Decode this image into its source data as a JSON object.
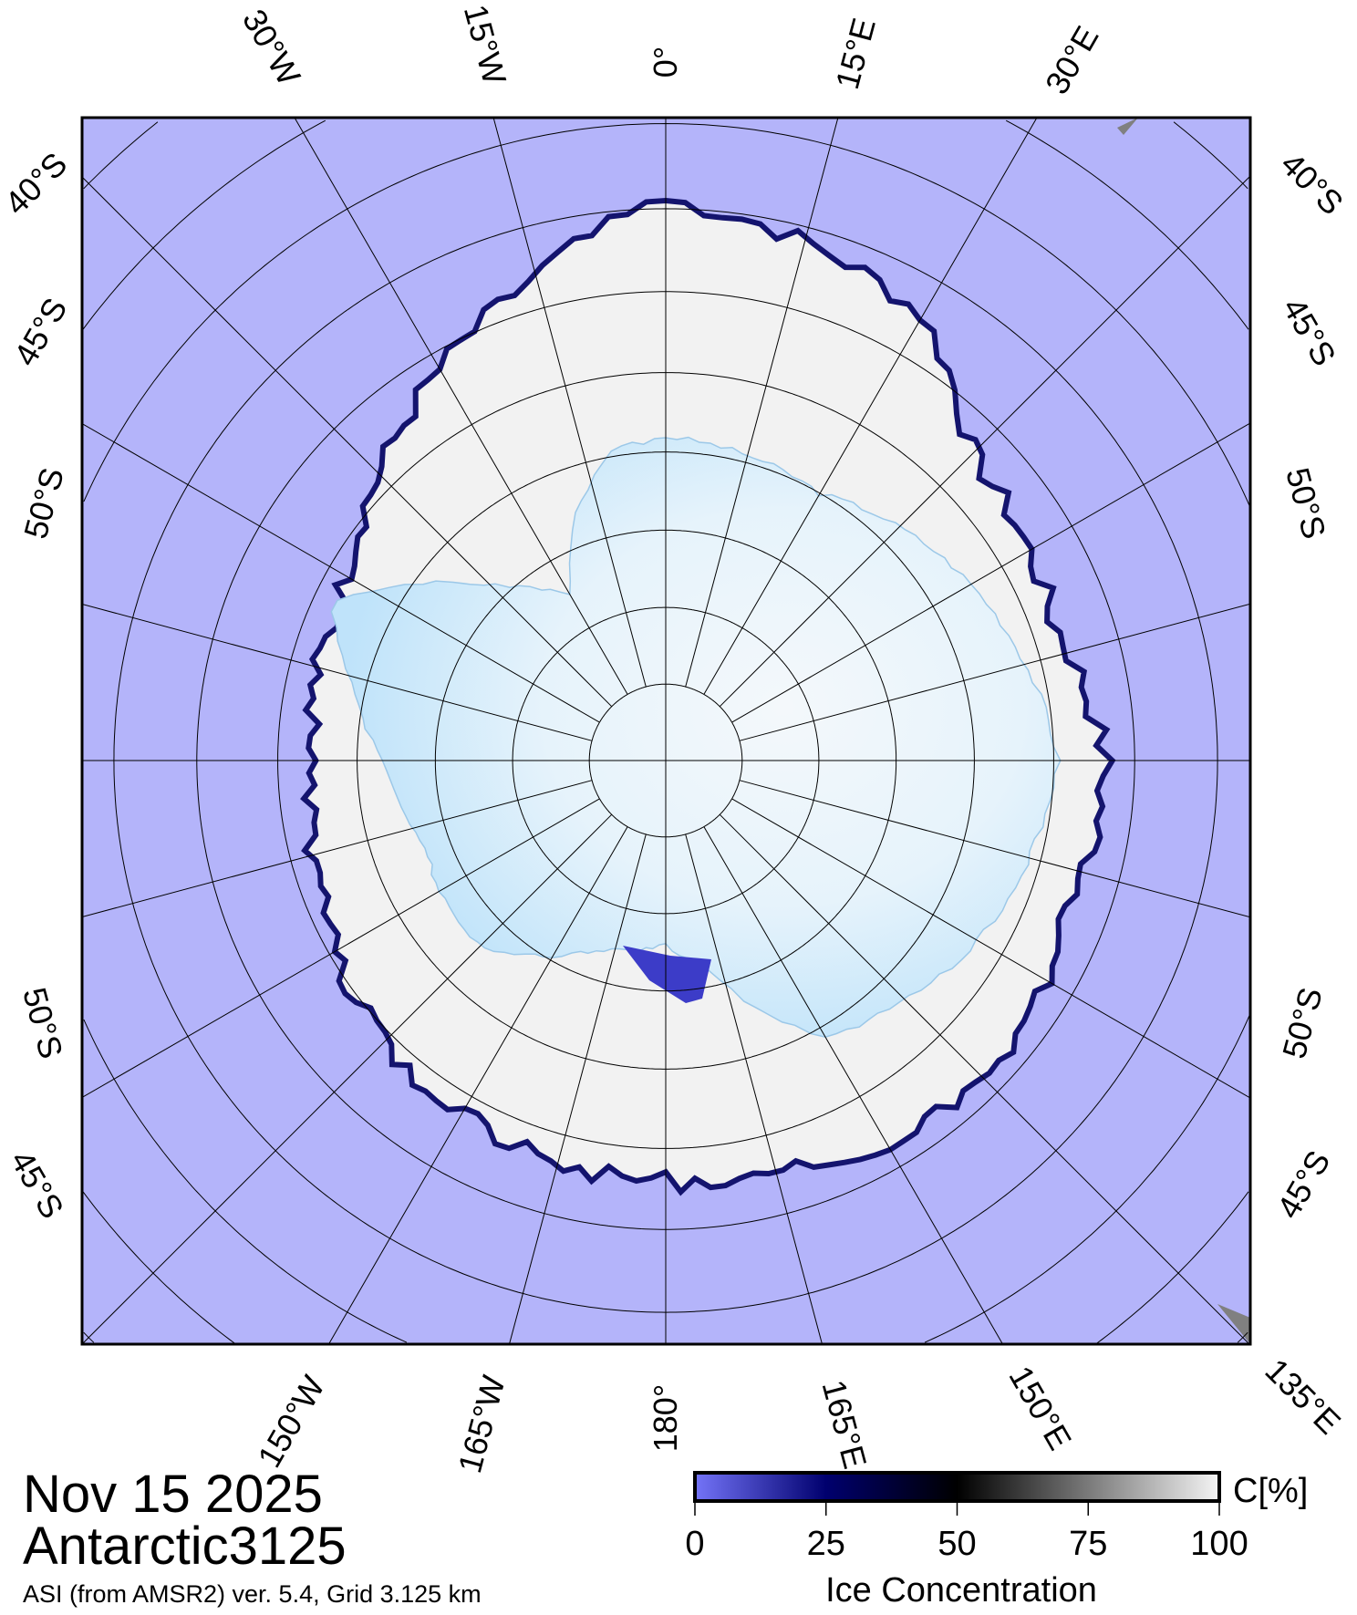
{
  "map": {
    "projection": "south polar stereographic",
    "colors": {
      "ocean": "#b4b4fa",
      "ice": "#f2f2f2",
      "ice_edge": "#14146e",
      "continent": "#c6e6fa",
      "land": "#808080"
    },
    "lat_circles": [
      85,
      80,
      75,
      70,
      65,
      60,
      55,
      50,
      45,
      40
    ],
    "meridian_step_deg": 15,
    "top_labels": [
      "30°W",
      "15°W",
      "0°",
      "15°E",
      "30°E"
    ],
    "bottom_labels": [
      "150°W",
      "165°W",
      "180°",
      "165°E",
      "150°E",
      "135°E"
    ],
    "left_labels": [
      "40°S",
      "45°S",
      "50°S",
      "50°S",
      "45°S"
    ],
    "right_labels": [
      "40°S",
      "45°S",
      "50°S",
      "50°S",
      "45°S"
    ]
  },
  "title": {
    "date": "Nov 15 2025",
    "product": "Antarctic3125",
    "source": "ASI (from AMSR2) ver. 5.4,  Grid 3.125 km"
  },
  "colorbar": {
    "unit": "C[%]",
    "label": "Ice Concentration",
    "ticks": [
      "0",
      "25",
      "50",
      "75",
      "100"
    ],
    "range": [
      0,
      100
    ],
    "stops": [
      {
        "value": 0,
        "color": "#7474f8"
      },
      {
        "value": 25,
        "color": "#00006e"
      },
      {
        "value": 50,
        "color": "#000000"
      },
      {
        "value": 100,
        "color": "#f4f4f4"
      }
    ]
  }
}
